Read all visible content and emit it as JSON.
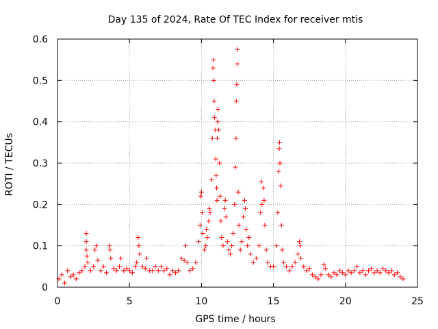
{
  "chart_data": {
    "type": "scatter",
    "title": "Day 135 of 2024, Rate Of TEC Index for receiver mtis",
    "xlabel": "GPS time / hours",
    "ylabel": "ROTI / TECUs",
    "xlim": [
      0,
      25
    ],
    "ylim": [
      0,
      0.6
    ],
    "xticks": [
      0,
      5,
      10,
      15,
      20,
      25
    ],
    "yticks": [
      0,
      0.1,
      0.2,
      0.3,
      0.4,
      0.5,
      0.6
    ],
    "xtick_labels": [
      "0",
      "5",
      "10",
      "15",
      "20",
      "25"
    ],
    "ytick_labels": [
      "0",
      "0.1",
      "0.2",
      "0.3",
      "0.4",
      "0.5",
      "0.6"
    ],
    "grid": true,
    "marker": "+",
    "color": "#ff0000",
    "series": [
      {
        "points": [
          [
            0.1,
            0.02
          ],
          [
            0.3,
            0.03
          ],
          [
            0.5,
            0.01
          ],
          [
            0.7,
            0.04
          ],
          [
            0.9,
            0.025
          ],
          [
            1.1,
            0.03
          ],
          [
            1.3,
            0.02
          ],
          [
            1.5,
            0.035
          ],
          [
            1.7,
            0.04
          ],
          [
            1.9,
            0.05
          ],
          [
            2.0,
            0.13
          ],
          [
            2.0,
            0.11
          ],
          [
            2.0,
            0.09
          ],
          [
            2.05,
            0.075
          ],
          [
            2.1,
            0.06
          ],
          [
            2.3,
            0.04
          ],
          [
            2.5,
            0.05
          ],
          [
            2.6,
            0.09
          ],
          [
            2.7,
            0.1
          ],
          [
            2.8,
            0.065
          ],
          [
            3.0,
            0.04
          ],
          [
            3.2,
            0.05
          ],
          [
            3.4,
            0.035
          ],
          [
            3.6,
            0.1
          ],
          [
            3.65,
            0.09
          ],
          [
            3.7,
            0.07
          ],
          [
            3.9,
            0.045
          ],
          [
            4.1,
            0.04
          ],
          [
            4.3,
            0.05
          ],
          [
            4.4,
            0.07
          ],
          [
            4.6,
            0.04
          ],
          [
            4.8,
            0.045
          ],
          [
            5.0,
            0.04
          ],
          [
            5.2,
            0.035
          ],
          [
            5.4,
            0.05
          ],
          [
            5.5,
            0.06
          ],
          [
            5.6,
            0.12
          ],
          [
            5.65,
            0.1
          ],
          [
            5.7,
            0.08
          ],
          [
            5.9,
            0.05
          ],
          [
            6.1,
            0.045
          ],
          [
            6.2,
            0.07
          ],
          [
            6.4,
            0.04
          ],
          [
            6.6,
            0.04
          ],
          [
            6.8,
            0.05
          ],
          [
            7.0,
            0.04
          ],
          [
            7.2,
            0.05
          ],
          [
            7.4,
            0.04
          ],
          [
            7.6,
            0.045
          ],
          [
            7.8,
            0.03
          ],
          [
            8.0,
            0.04
          ],
          [
            8.2,
            0.035
          ],
          [
            8.4,
            0.04
          ],
          [
            8.6,
            0.07
          ],
          [
            8.8,
            0.065
          ],
          [
            8.9,
            0.1
          ],
          [
            9.0,
            0.06
          ],
          [
            9.2,
            0.04
          ],
          [
            9.4,
            0.045
          ],
          [
            9.6,
            0.06
          ],
          [
            9.8,
            0.11
          ],
          [
            9.9,
            0.15
          ],
          [
            9.95,
            0.22
          ],
          [
            10.0,
            0.23
          ],
          [
            10.05,
            0.18
          ],
          [
            10.1,
            0.13
          ],
          [
            10.2,
            0.09
          ],
          [
            10.3,
            0.1
          ],
          [
            10.35,
            0.14
          ],
          [
            10.4,
            0.12
          ],
          [
            10.5,
            0.16
          ],
          [
            10.55,
            0.19
          ],
          [
            10.6,
            0.18
          ],
          [
            10.7,
            0.26
          ],
          [
            10.75,
            0.36
          ],
          [
            10.8,
            0.53
          ],
          [
            10.82,
            0.55
          ],
          [
            10.85,
            0.5
          ],
          [
            10.88,
            0.45
          ],
          [
            10.9,
            0.41
          ],
          [
            10.95,
            0.38
          ],
          [
            11.0,
            0.31
          ],
          [
            11.02,
            0.27
          ],
          [
            11.05,
            0.24
          ],
          [
            11.08,
            0.21
          ],
          [
            11.1,
            0.36
          ],
          [
            11.12,
            0.4
          ],
          [
            11.15,
            0.43
          ],
          [
            11.2,
            0.38
          ],
          [
            11.25,
            0.3
          ],
          [
            11.3,
            0.22
          ],
          [
            11.35,
            0.16
          ],
          [
            11.4,
            0.12
          ],
          [
            11.5,
            0.1
          ],
          [
            11.6,
            0.19
          ],
          [
            11.65,
            0.21
          ],
          [
            11.7,
            0.17
          ],
          [
            11.8,
            0.11
          ],
          [
            11.9,
            0.09
          ],
          [
            12.0,
            0.08
          ],
          [
            12.1,
            0.1
          ],
          [
            12.2,
            0.13
          ],
          [
            12.3,
            0.2
          ],
          [
            12.35,
            0.29
          ],
          [
            12.4,
            0.36
          ],
          [
            12.42,
            0.45
          ],
          [
            12.45,
            0.49
          ],
          [
            12.48,
            0.54
          ],
          [
            12.5,
            0.575
          ],
          [
            12.55,
            0.23
          ],
          [
            12.6,
            0.15
          ],
          [
            12.7,
            0.09
          ],
          [
            12.8,
            0.11
          ],
          [
            12.9,
            0.17
          ],
          [
            13.0,
            0.21
          ],
          [
            13.05,
            0.19
          ],
          [
            13.1,
            0.14
          ],
          [
            13.2,
            0.1
          ],
          [
            13.3,
            0.12
          ],
          [
            13.4,
            0.08
          ],
          [
            13.6,
            0.06
          ],
          [
            13.8,
            0.07
          ],
          [
            14.0,
            0.1
          ],
          [
            14.1,
            0.18
          ],
          [
            14.15,
            0.255
          ],
          [
            14.2,
            0.2
          ],
          [
            14.3,
            0.24
          ],
          [
            14.35,
            0.21
          ],
          [
            14.4,
            0.15
          ],
          [
            14.5,
            0.09
          ],
          [
            14.6,
            0.06
          ],
          [
            14.8,
            0.05
          ],
          [
            15.0,
            0.05
          ],
          [
            15.2,
            0.1
          ],
          [
            15.3,
            0.18
          ],
          [
            15.35,
            0.28
          ],
          [
            15.4,
            0.335
          ],
          [
            15.42,
            0.35
          ],
          [
            15.45,
            0.3
          ],
          [
            15.5,
            0.245
          ],
          [
            15.55,
            0.15
          ],
          [
            15.6,
            0.09
          ],
          [
            15.7,
            0.06
          ],
          [
            15.9,
            0.05
          ],
          [
            16.1,
            0.04
          ],
          [
            16.3,
            0.05
          ],
          [
            16.5,
            0.06
          ],
          [
            16.7,
            0.08
          ],
          [
            16.8,
            0.11
          ],
          [
            16.85,
            0.1
          ],
          [
            16.9,
            0.07
          ],
          [
            17.1,
            0.05
          ],
          [
            17.3,
            0.04
          ],
          [
            17.5,
            0.045
          ],
          [
            17.7,
            0.03
          ],
          [
            17.9,
            0.025
          ],
          [
            18.1,
            0.02
          ],
          [
            18.3,
            0.03
          ],
          [
            18.5,
            0.055
          ],
          [
            18.6,
            0.045
          ],
          [
            18.8,
            0.03
          ],
          [
            19.0,
            0.025
          ],
          [
            19.2,
            0.035
          ],
          [
            19.4,
            0.03
          ],
          [
            19.6,
            0.04
          ],
          [
            19.8,
            0.035
          ],
          [
            20.0,
            0.03
          ],
          [
            20.2,
            0.04
          ],
          [
            20.4,
            0.035
          ],
          [
            20.6,
            0.04
          ],
          [
            20.8,
            0.05
          ],
          [
            21.0,
            0.035
          ],
          [
            21.2,
            0.04
          ],
          [
            21.4,
            0.03
          ],
          [
            21.6,
            0.04
          ],
          [
            21.8,
            0.045
          ],
          [
            22.0,
            0.035
          ],
          [
            22.2,
            0.04
          ],
          [
            22.4,
            0.035
          ],
          [
            22.6,
            0.045
          ],
          [
            22.8,
            0.04
          ],
          [
            23.0,
            0.035
          ],
          [
            23.2,
            0.04
          ],
          [
            23.4,
            0.03
          ],
          [
            23.6,
            0.035
          ],
          [
            23.8,
            0.025
          ],
          [
            24.0,
            0.02
          ]
        ]
      }
    ]
  }
}
